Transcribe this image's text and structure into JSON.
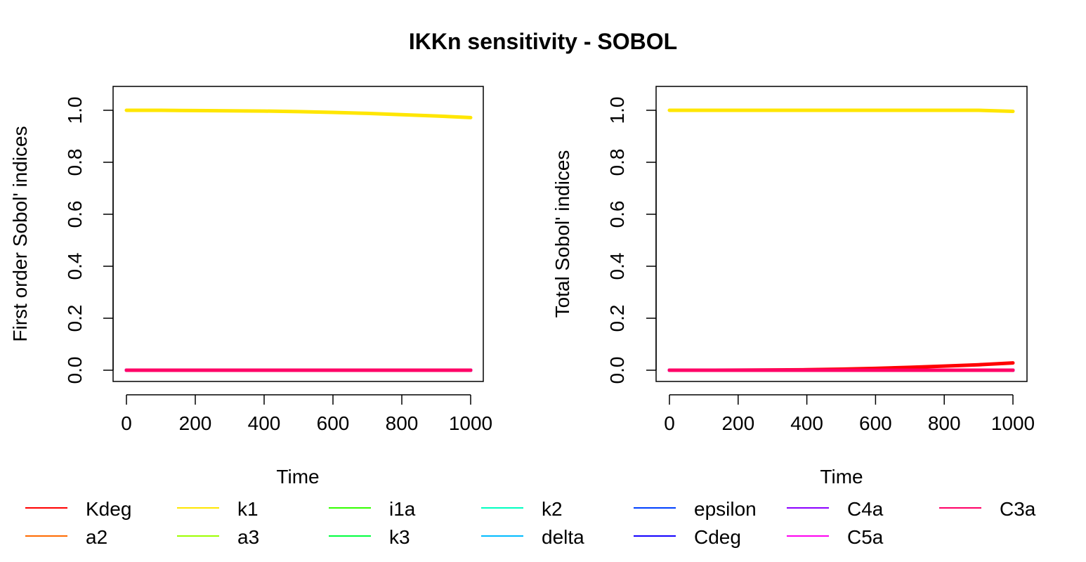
{
  "title": "IKKn sensitivity - SOBOL",
  "legend": {
    "placement": "bottom",
    "entries": [
      {
        "name": "Kdeg",
        "color": "#FF0000"
      },
      {
        "name": "a2",
        "color": "#FF6A00"
      },
      {
        "name": "k1",
        "color": "#FFE600"
      },
      {
        "name": "a3",
        "color": "#9DFF00"
      },
      {
        "name": "i1a",
        "color": "#33FF00"
      },
      {
        "name": "k3",
        "color": "#00FF3F"
      },
      {
        "name": "k2",
        "color": "#00FFC0"
      },
      {
        "name": "delta",
        "color": "#00BBFF"
      },
      {
        "name": "epsilon",
        "color": "#0040FF"
      },
      {
        "name": "Cdeg",
        "color": "#1300FF"
      },
      {
        "name": "C4a",
        "color": "#8C00FF"
      },
      {
        "name": "C5a",
        "color": "#FF00F0"
      },
      {
        "name": "C3a",
        "color": "#FF0066"
      }
    ]
  },
  "chart_data": [
    {
      "type": "line",
      "xlabel": "Time",
      "ylabel": "First order Sobol' indices",
      "xlim": [
        0,
        1000
      ],
      "ylim": [
        0,
        1.1
      ],
      "xticks": [
        "0",
        "200",
        "400",
        "600",
        "800",
        "1000"
      ],
      "yticks": [
        "0.0",
        "0.2",
        "0.4",
        "0.6",
        "0.8",
        "1.0"
      ],
      "grid": false,
      "x": [
        0,
        100,
        200,
        300,
        400,
        500,
        600,
        700,
        800,
        900,
        1000
      ],
      "series": [
        {
          "name": "Kdeg",
          "values": [
            0,
            0,
            0,
            0,
            0,
            0,
            0,
            0,
            0,
            0,
            0
          ]
        },
        {
          "name": "a2",
          "values": [
            0,
            0,
            0,
            0,
            0,
            0,
            0,
            0,
            0,
            0,
            0
          ]
        },
        {
          "name": "k1",
          "values": [
            1.0,
            1.0,
            0.999,
            0.998,
            0.997,
            0.995,
            0.992,
            0.988,
            0.983,
            0.978,
            0.972
          ]
        },
        {
          "name": "a3",
          "values": [
            0,
            0,
            0,
            0,
            0,
            0,
            0,
            0,
            0,
            0,
            0
          ]
        },
        {
          "name": "i1a",
          "values": [
            0,
            0,
            0,
            0,
            0,
            0,
            0,
            0,
            0,
            0,
            0
          ]
        },
        {
          "name": "k3",
          "values": [
            0,
            0,
            0,
            0,
            0,
            0,
            0,
            0,
            0,
            0,
            0
          ]
        },
        {
          "name": "k2",
          "values": [
            0,
            0,
            0,
            0,
            0,
            0,
            0,
            0,
            0,
            0,
            0
          ]
        },
        {
          "name": "delta",
          "values": [
            0,
            0,
            0,
            0,
            0,
            0,
            0,
            0,
            0,
            0,
            0
          ]
        },
        {
          "name": "epsilon",
          "values": [
            0,
            0,
            0,
            0,
            0,
            0,
            0,
            0,
            0,
            0,
            0
          ]
        },
        {
          "name": "Cdeg",
          "values": [
            0,
            0,
            0,
            0,
            0,
            0,
            0,
            0,
            0,
            0,
            0
          ]
        },
        {
          "name": "C4a",
          "values": [
            0,
            0,
            0,
            0,
            0,
            0,
            0,
            0,
            0,
            0,
            0
          ]
        },
        {
          "name": "C5a",
          "values": [
            0,
            0,
            0,
            0,
            0,
            0,
            0,
            0,
            0,
            0,
            0
          ]
        },
        {
          "name": "C3a",
          "values": [
            0,
            0,
            0,
            0,
            0,
            0,
            0,
            0,
            0,
            0,
            0
          ]
        }
      ]
    },
    {
      "type": "line",
      "xlabel": "Time",
      "ylabel": "Total Sobol' indices",
      "xlim": [
        0,
        1000
      ],
      "ylim": [
        0,
        1.1
      ],
      "xticks": [
        "0",
        "200",
        "400",
        "600",
        "800",
        "1000"
      ],
      "yticks": [
        "0.0",
        "0.2",
        "0.4",
        "0.6",
        "0.8",
        "1.0"
      ],
      "grid": false,
      "x": [
        0,
        100,
        200,
        300,
        400,
        500,
        600,
        700,
        800,
        900,
        1000
      ],
      "series": [
        {
          "name": "Kdeg",
          "values": [
            0,
            0,
            0.0003,
            0.001,
            0.002,
            0.004,
            0.007,
            0.011,
            0.016,
            0.021,
            0.028
          ]
        },
        {
          "name": "a2",
          "values": [
            0,
            0,
            0,
            0,
            0,
            0,
            0,
            0,
            0,
            0,
            0
          ]
        },
        {
          "name": "k1",
          "values": [
            1.0,
            1.0,
            1.0,
            1.0,
            1.0,
            1.0,
            1.0,
            1.0,
            1.0,
            1.0,
            0.996
          ]
        },
        {
          "name": "a3",
          "values": [
            0,
            0,
            0,
            0,
            0,
            0,
            0,
            0,
            0,
            0,
            0
          ]
        },
        {
          "name": "i1a",
          "values": [
            0,
            0,
            0,
            0,
            0,
            0,
            0,
            0,
            0,
            0,
            0
          ]
        },
        {
          "name": "k3",
          "values": [
            0,
            0,
            0,
            0,
            0,
            0,
            0,
            0,
            0,
            0,
            0
          ]
        },
        {
          "name": "k2",
          "values": [
            0,
            0,
            0,
            0,
            0,
            0,
            0,
            0,
            0,
            0,
            0
          ]
        },
        {
          "name": "delta",
          "values": [
            0,
            0,
            0,
            0,
            0,
            0,
            0,
            0,
            0,
            0,
            0
          ]
        },
        {
          "name": "epsilon",
          "values": [
            0,
            0,
            0,
            0,
            0,
            0,
            0,
            0,
            0,
            0,
            0
          ]
        },
        {
          "name": "Cdeg",
          "values": [
            0,
            0,
            0,
            0,
            0,
            0,
            0,
            0,
            0,
            0,
            0
          ]
        },
        {
          "name": "C4a",
          "values": [
            0,
            0,
            0,
            0,
            0,
            0,
            0,
            0,
            0,
            0,
            0
          ]
        },
        {
          "name": "C5a",
          "values": [
            0,
            0,
            0,
            0,
            0,
            0,
            0,
            0,
            0,
            0,
            0
          ]
        },
        {
          "name": "C3a",
          "values": [
            0,
            0,
            0,
            0,
            0,
            0,
            0,
            0,
            0,
            0,
            0
          ]
        }
      ]
    }
  ]
}
